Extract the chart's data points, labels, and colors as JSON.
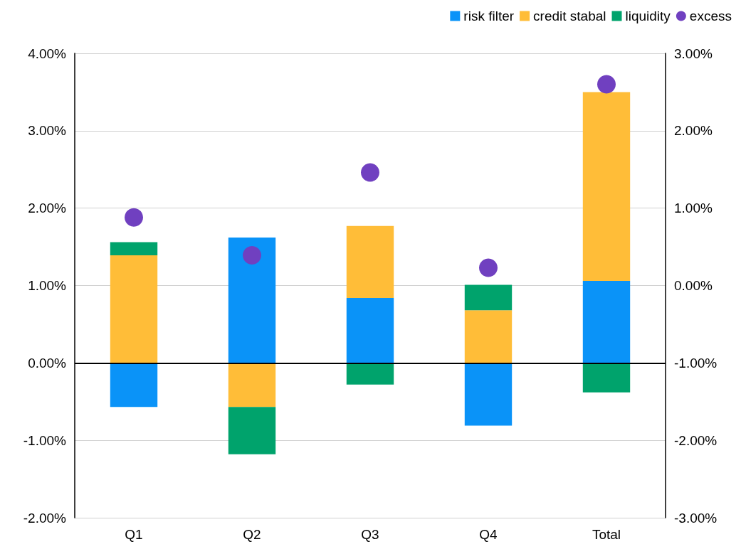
{
  "chart_data": {
    "type": "bar",
    "stacked": true,
    "categories": [
      "Q1",
      "Q2",
      "Q3",
      "Q4",
      "Total"
    ],
    "series": [
      {
        "name": "risk filter",
        "color": "#0a93f8",
        "values": [
          -0.57,
          1.62,
          0.84,
          -0.81,
          1.06
        ]
      },
      {
        "name": "credit stabal",
        "color": "#ffbd38",
        "values": [
          1.39,
          -0.57,
          0.93,
          0.68,
          2.44
        ]
      },
      {
        "name": "liquidity",
        "color": "#00a36c",
        "values": [
          0.17,
          -0.61,
          -0.28,
          0.33,
          -0.38
        ]
      },
      {
        "name": "excess",
        "type": "scatter",
        "axis": "y2",
        "marker": "circle",
        "color": "#7040c0",
        "values": [
          0.88,
          0.39,
          1.46,
          0.23,
          2.6
        ]
      }
    ],
    "ylim": [
      -2,
      4
    ],
    "yticks": [
      {
        "value": -2,
        "label": "-2.00%"
      },
      {
        "value": -1,
        "label": "-1.00%"
      },
      {
        "value": 0,
        "label": "0.00%"
      },
      {
        "value": 1,
        "label": "1.00%"
      },
      {
        "value": 2,
        "label": "2.00%"
      },
      {
        "value": 3,
        "label": "3.00%"
      },
      {
        "value": 4,
        "label": "4.00%"
      }
    ],
    "y2lim": [
      -3,
      3
    ],
    "y2ticks": [
      {
        "value": -3,
        "label": "-3.00%"
      },
      {
        "value": -2,
        "label": "-2.00%"
      },
      {
        "value": -1,
        "label": "-1.00%"
      },
      {
        "value": 0,
        "label": "0.00%"
      },
      {
        "value": 1,
        "label": "1.00%"
      },
      {
        "value": 2,
        "label": "2.00%"
      },
      {
        "value": 3,
        "label": "3.00%"
      }
    ],
    "ref_lines": [
      {
        "axis": "y",
        "value": 0,
        "color": "#000000"
      }
    ],
    "grid": "y",
    "legend": "top right"
  }
}
